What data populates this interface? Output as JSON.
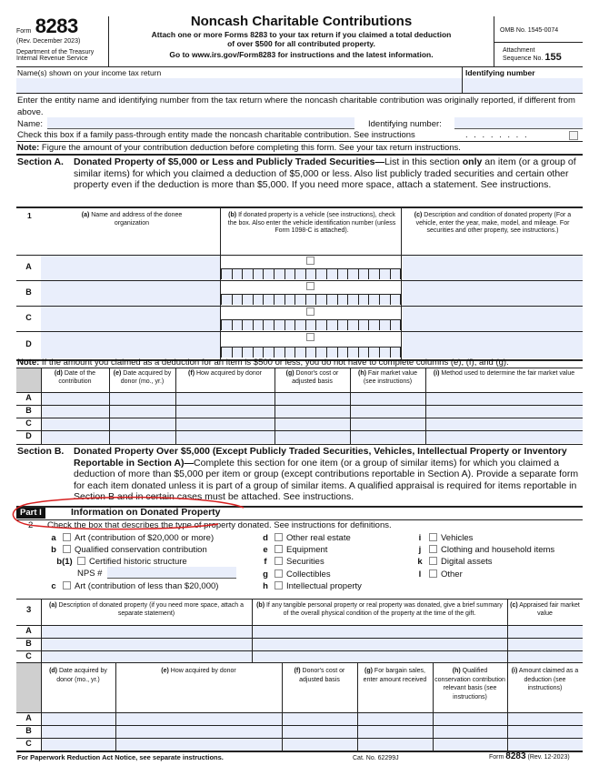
{
  "header": {
    "form_word": "Form",
    "form_number": "8283",
    "revision": "(Rev. December 2023)",
    "department": "Department of the Treasury",
    "agency": "Internal Revenue Service",
    "title": "Noncash Charitable Contributions",
    "subtitle_1": "Attach one or more Forms 8283 to your tax return if you claimed a total deduction",
    "subtitle_2": "of over $500 for all contributed property.",
    "subtitle_3": "Go to www.irs.gov/Form8283 for instructions and the latest information.",
    "omb": "OMB No. 1545-0074",
    "attachment": "Attachment",
    "sequence": "Sequence No.",
    "sequence_no": "155"
  },
  "taxpayer": {
    "name_label": "Name(s) shown on your income tax return",
    "id_label": "Identifying number",
    "name_value": "",
    "id_value": ""
  },
  "entity": {
    "instructions": "Enter the entity name and identifying number from the tax return where the noncash charitable contribution was originally reported, if different from above.",
    "name_label": "Name:",
    "id_label": "Identifying number:",
    "name_value": "",
    "id_value": "",
    "passthrough_label": "Check this box if a family pass-through entity made the noncash charitable contribution. See instructions",
    "passthrough_checked": false,
    "dots": ". . . . . . . ."
  },
  "note1": {
    "bold": "Note:",
    "text": " Figure the amount of your contribution deduction before completing this form. See your tax return instructions."
  },
  "sectionA": {
    "label": "Section A.",
    "title": "Donated Property of $5,000 or Less and Publicly Traded Securities—",
    "text_1": "List in this section ",
    "only": "only",
    "text_2": " an item (or a group of similar items) for which you claimed a deduction of $5,000 or less. Also list publicly traded securities and certain other property even if the deduction is more than $5,000. If you need more space, attach a statement. See instructions.",
    "line_no": "1",
    "col_a": {
      "letter": "(a)",
      "text": " Name and address of the donee organization"
    },
    "col_b": {
      "letter": "(b)",
      "text": " If donated property is a vehicle (see instructions), check the box. Also enter the vehicle identification number (unless Form 1098-C is attached)."
    },
    "col_c": {
      "letter": "(c)",
      "text": " Description and condition of donated property (For a vehicle, enter the year, make, model, and mileage. For securities and other property, see instructions.)"
    },
    "rows": [
      "A",
      "B",
      "C",
      "D"
    ],
    "note_bold": "Note:",
    "note_text": " If the amount you claimed as a deduction for an item is $500 or less, you do not have to complete columns (e), (f), and (g).",
    "cols2": [
      {
        "letter": "(d)",
        "text": " Date of the contribution"
      },
      {
        "letter": "(e)",
        "text": " Date acquired by donor (mo., yr.)"
      },
      {
        "letter": "(f)",
        "text": " How acquired by donor"
      },
      {
        "letter": "(g)",
        "text": " Donor's cost or adjusted basis"
      },
      {
        "letter": "(h)",
        "text": " Fair market value (see instructions)"
      },
      {
        "letter": "(i)",
        "text": " Method used to determine the fair market value"
      }
    ]
  },
  "sectionB": {
    "label": "Section B.",
    "title": "Donated Property Over $5,000 (Except Publicly Traded Securities, Vehicles, Intellectual Property or Inventory Reportable in Section A)—",
    "text": "Complete this section for one item (or a group of similar items) for which you claimed a deduction of more than $5,000 per item or group (except contributions reportable in Section A). Provide a separate form for each item donated unless it is part of a group of similar items. A qualified appraisal is required for items reportable in Section B and in certain cases must be attached. See instructions.",
    "part_label": "Part I",
    "part_title": "Information on Donated Property",
    "line2_no": "2",
    "line2_text": "Check the box that describes the type of property donated. See instructions for definitions.",
    "types": [
      {
        "key": "a",
        "label": "Art (contribution of $20,000 or more)"
      },
      {
        "key": "b",
        "label": "Qualified conservation contribution"
      },
      {
        "key": "b(1)",
        "label": "Certified historic structure"
      },
      {
        "key": "c",
        "label": "Art (contribution of less than $20,000)"
      },
      {
        "key": "d",
        "label": "Other real estate"
      },
      {
        "key": "e",
        "label": "Equipment"
      },
      {
        "key": "f",
        "label": "Securities"
      },
      {
        "key": "g",
        "label": "Collectibles"
      },
      {
        "key": "h",
        "label": "Intellectual property"
      },
      {
        "key": "i",
        "label": "Vehicles"
      },
      {
        "key": "j",
        "label": "Clothing and household items"
      },
      {
        "key": "k",
        "label": "Digital assets"
      },
      {
        "key": "l",
        "label": "Other"
      }
    ],
    "nps_label": "NPS #",
    "line3_no": "3",
    "col3": [
      {
        "letter": "(a)",
        "text": " Description of donated property (if you need more space, attach a separate statement)"
      },
      {
        "letter": "(b)",
        "text": " If any tangible personal property or real property was donated, give a brief summary of the overall physical condition of the property at the time of the gift."
      },
      {
        "letter": "(c)",
        "text": " Appraised fair market value"
      }
    ],
    "rows": [
      "A",
      "B",
      "C"
    ],
    "col4": [
      {
        "letter": "(d)",
        "text": " Date acquired by donor (mo., yr.)"
      },
      {
        "letter": "(e)",
        "text": " How acquired by donor"
      },
      {
        "letter": "(f)",
        "text": " Donor's cost or adjusted basis"
      },
      {
        "letter": "(g)",
        "text": " For bargain sales, enter amount received"
      },
      {
        "letter": "(h)",
        "text": " Qualified conservation contribution relevant basis (see instructions)"
      },
      {
        "letter": "(i)",
        "text": " Amount claimed as a deduction (see instructions)"
      }
    ]
  },
  "footer": {
    "paperwork": "For Paperwork Reduction Act Notice, see separate instructions.",
    "cat": "Cat. No. 62299J",
    "form_word": "Form",
    "form_number": "8283",
    "rev": "(Rev. 12-2023)"
  },
  "annotation_color": "#d62020"
}
